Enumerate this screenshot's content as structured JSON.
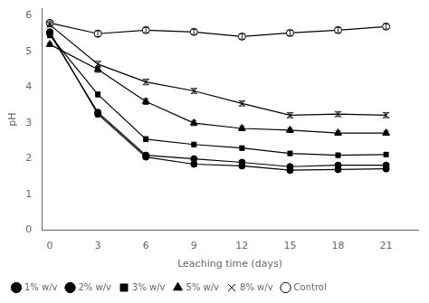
{
  "chart_data": {
    "type": "line",
    "xlabel": "Leaching time (days)",
    "ylabel": "pH",
    "x": [
      0,
      3,
      6,
      9,
      12,
      15,
      18,
      21
    ],
    "series": [
      {
        "name": "1% w/v",
        "color": "#000000",
        "marker": "circle",
        "values": [
          5.55,
          3.25,
          2.05,
          1.85,
          1.8,
          1.68,
          1.7,
          1.72
        ],
        "yerr": [
          0.05,
          0.07,
          0.06,
          0.05,
          0.05,
          0.05,
          0.05,
          0.05
        ]
      },
      {
        "name": "2% w/v",
        "color": "#000000",
        "marker": "circle",
        "values": [
          5.5,
          3.3,
          2.1,
          2.0,
          1.9,
          1.78,
          1.82,
          1.82
        ],
        "yerr": [
          0.05,
          0.07,
          0.06,
          0.05,
          0.05,
          0.05,
          0.05,
          0.05
        ]
      },
      {
        "name": "3% w/v",
        "color": "#000000",
        "marker": "square",
        "values": [
          5.45,
          3.8,
          2.55,
          2.4,
          2.3,
          2.15,
          2.1,
          2.12
        ],
        "yerr": [
          0.05,
          0.07,
          0.07,
          0.06,
          0.06,
          0.06,
          0.06,
          0.06
        ]
      },
      {
        "name": "5% w/v",
        "color": "#000000",
        "marker": "triangle",
        "values": [
          5.2,
          4.5,
          3.6,
          3.0,
          2.85,
          2.8,
          2.72,
          2.72
        ],
        "yerr": [
          0.05,
          0.08,
          0.08,
          0.07,
          0.06,
          0.06,
          0.06,
          0.06
        ]
      },
      {
        "name": "8% w/v",
        "color": "#000000",
        "marker": "cross",
        "values": [
          5.75,
          4.65,
          4.15,
          3.9,
          3.55,
          3.22,
          3.25,
          3.22
        ],
        "yerr": [
          0.06,
          0.08,
          0.08,
          0.07,
          0.07,
          0.07,
          0.07,
          0.07
        ]
      },
      {
        "name": "Control",
        "color": "#000000",
        "marker": "circle-open",
        "values": [
          5.8,
          5.5,
          5.6,
          5.55,
          5.42,
          5.52,
          5.6,
          5.7
        ],
        "yerr": [
          0.06,
          0.08,
          0.07,
          0.07,
          0.07,
          0.07,
          0.07,
          0.07
        ]
      }
    ],
    "xlim": [
      -0.5,
      23
    ],
    "ylim": [
      0,
      6.2
    ],
    "xticks": [
      0,
      3,
      6,
      9,
      12,
      15,
      18,
      21
    ],
    "yticks": [
      0,
      1,
      2,
      3,
      4,
      5,
      6
    ],
    "grid": false,
    "legend": "lower left"
  }
}
